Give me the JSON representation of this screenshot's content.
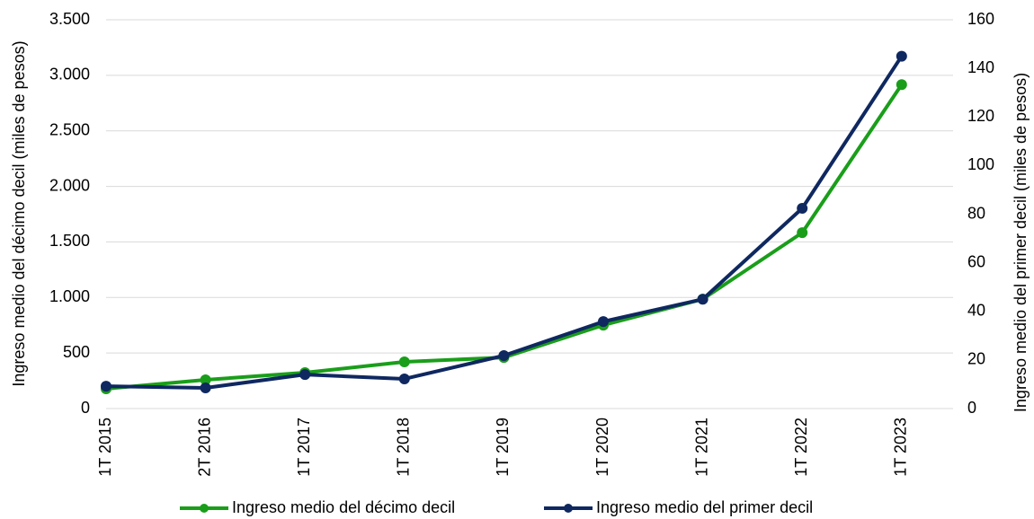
{
  "chart_data": {
    "type": "line",
    "categories": [
      "1T 2015",
      "2T 2016",
      "1T 2017",
      "1T 2018",
      "1T 2019",
      "1T 2020",
      "1T 2021",
      "1T 2022",
      "1T 2023"
    ],
    "series": [
      {
        "name": "Ingreso medio del décimo decil",
        "color": "#1a9e1a",
        "axis": "y",
        "values": [
          178,
          259,
          323,
          420,
          460,
          751,
          985,
          1583,
          2916
        ]
      },
      {
        "name": "Ingreso medio del primer decil",
        "color": "#0f2860",
        "axis": "y2",
        "values": [
          9.2,
          8.5,
          14,
          12.2,
          21.8,
          35.8,
          45,
          82.4,
          145
        ]
      }
    ],
    "ylabel": "Ingreso medio del décimo decil (miles de pesos)",
    "y2label": "Ingreso medio del primer decil (miles de pesos)",
    "ylim": [
      0,
      3500
    ],
    "yticks": [
      0,
      500,
      {
        "value": 1000,
        "label": "1.000"
      },
      {
        "value": 1500,
        "label": "1.500"
      },
      {
        "value": 2000,
        "label": "2.000"
      },
      {
        "value": 2500,
        "label": "2.500"
      },
      {
        "value": 3000,
        "label": "3.000"
      },
      {
        "value": 3500,
        "label": "3.500"
      }
    ],
    "y2lim": [
      0,
      160
    ],
    "y2ticks": [
      0,
      20,
      40,
      60,
      80,
      100,
      120,
      140,
      160
    ],
    "grid": true,
    "legend": "bottom"
  }
}
